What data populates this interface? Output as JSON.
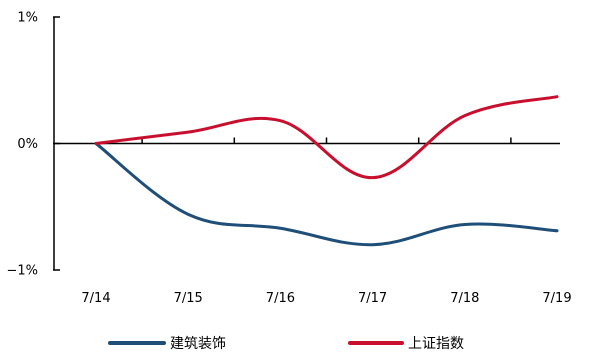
{
  "chart_data": {
    "type": "line",
    "title": "",
    "xlabel": "",
    "ylabel": "",
    "categories": [
      "7/14",
      "7/15",
      "7/16",
      "7/17",
      "7/18",
      "7/19"
    ],
    "y_ticks": [
      {
        "value": 1,
        "label": "1%"
      },
      {
        "value": 0,
        "label": "0%"
      },
      {
        "value": -1,
        "label": "−1%"
      }
    ],
    "ylim": [
      -1,
      1
    ],
    "grid": false,
    "legend_position": "bottom",
    "series": [
      {
        "name": "建筑装饰",
        "color": "#1f4e79",
        "values": [
          0.0,
          -0.56,
          -0.67,
          -0.8,
          -0.64,
          -0.69
        ]
      },
      {
        "name": "上证指数",
        "color": "#c8102e",
        "values": [
          0.0,
          0.09,
          0.18,
          -0.27,
          0.22,
          0.37
        ]
      }
    ]
  }
}
